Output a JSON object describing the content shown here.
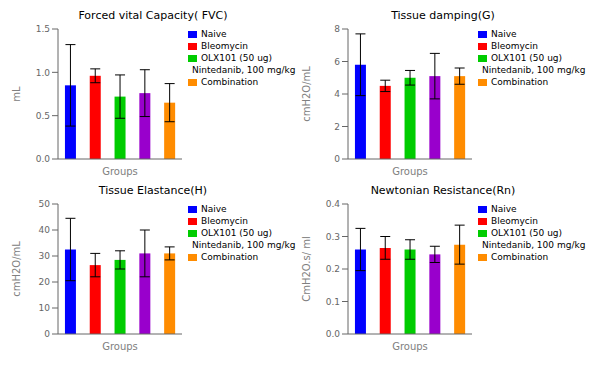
{
  "chart_data": [
    {
      "type": "bar",
      "title": "Forced vital Capacity( FVC)",
      "xlabel": "Groups",
      "ylabel": "mL",
      "categories": [
        "Naive",
        "Bleomycin",
        "OLX101 (50 ug)",
        "Nintedanib, 100 mg/kg",
        "Combination"
      ],
      "values": [
        0.85,
        0.96,
        0.72,
        0.76,
        0.65
      ],
      "errors": [
        0.47,
        0.08,
        0.25,
        0.27,
        0.22
      ],
      "colors": [
        "#0000FF",
        "#FF0000",
        "#00CC00",
        "#9900CC",
        "#FF8C00"
      ],
      "ylim": [
        0.0,
        1.5
      ],
      "yticks": [
        {
          "value": 0,
          "label": "0.0"
        },
        0.5,
        {
          "value": 1,
          "label": "1.0"
        },
        1.5
      ],
      "grid": false,
      "legend": "upper right",
      "tick_labels": "y"
    },
    {
      "type": "bar",
      "title": "Tissue damping(G)",
      "xlabel": "Groups",
      "ylabel": "cmH2O/mL",
      "categories": [
        "Naive",
        "Bleomycin",
        "OLX101 (50 ug)",
        "Nintedanib, 100 mg/kg",
        "Combination"
      ],
      "values": [
        5.8,
        4.5,
        5.0,
        5.1,
        5.1
      ],
      "errors": [
        1.9,
        0.35,
        0.45,
        1.4,
        0.5
      ],
      "colors": [
        "#0000FF",
        "#FF0000",
        "#00CC00",
        "#9900CC",
        "#FF8C00"
      ],
      "ylim": [
        0,
        8
      ],
      "yticks": [
        0,
        2,
        4,
        6,
        8
      ],
      "grid": false,
      "legend": "upper right",
      "tick_labels": "y"
    },
    {
      "type": "bar",
      "title": "Tissue Elastance(H)",
      "xlabel": "Groups",
      "ylabel": "cmH2O/mL",
      "categories": [
        "Naive",
        "Bleomycin",
        "OLX101 (50 ug)",
        "Nintedanib, 100 mg/kg",
        "Combination"
      ],
      "values": [
        32.5,
        26.5,
        28.5,
        31.0,
        31.0
      ],
      "errors": [
        12.0,
        4.5,
        3.5,
        9.0,
        2.5
      ],
      "colors": [
        "#0000FF",
        "#FF0000",
        "#00CC00",
        "#9900CC",
        "#FF8C00"
      ],
      "ylim": [
        0,
        50
      ],
      "yticks": [
        0,
        10,
        20,
        30,
        40,
        50
      ],
      "grid": false,
      "legend": "upper right",
      "tick_labels": "y"
    },
    {
      "type": "bar",
      "title": "Newtonian Resistance(Rn)",
      "xlabel": "Groups",
      "ylabel": "CmH2O.s/ ml",
      "categories": [
        "Naive",
        "Bleomycin",
        "OLX101 (50 ug)",
        "Nintedanib, 100 mg/kg",
        "Combination"
      ],
      "values": [
        0.26,
        0.265,
        0.26,
        0.245,
        0.275
      ],
      "errors": [
        0.065,
        0.035,
        0.03,
        0.025,
        0.06
      ],
      "colors": [
        "#0000FF",
        "#FF0000",
        "#00CC00",
        "#9900CC",
        "#FF8C00"
      ],
      "ylim": [
        0.0,
        0.4
      ],
      "yticks": [
        {
          "value": 0,
          "label": "0.0"
        },
        0.1,
        0.2,
        0.3,
        0.4
      ],
      "grid": false,
      "legend": "upper right",
      "tick_labels": "y"
    }
  ]
}
